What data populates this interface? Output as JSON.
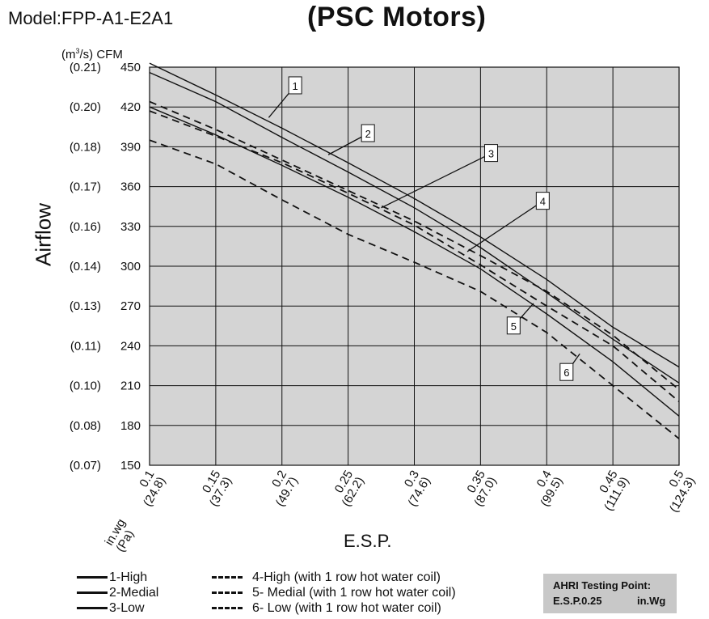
{
  "header": {
    "model": "Model:FPP-A1-E2A1",
    "title": "(PSC Motors)"
  },
  "chart_data": {
    "type": "line",
    "y_unit_label_prefix": "(m",
    "y_unit_label_sup": "3",
    "y_unit_label_suffix": "/s) CFM",
    "ylabel": "Airflow",
    "xlabel": "E.S.P.",
    "x_unit_label_line1": "in.wg",
    "x_unit_label_line2": "(Pa)",
    "xlim": [
      0.1,
      0.5
    ],
    "ylim": [
      150,
      450
    ],
    "grid": true,
    "plot_bg": "#d4d4d4",
    "x_ticks": [
      {
        "value": 0.1,
        "in": "0.1",
        "pa": "(24.8)"
      },
      {
        "value": 0.15,
        "in": "0.15",
        "pa": "(37.3)"
      },
      {
        "value": 0.2,
        "in": "0.2",
        "pa": "(49.7)"
      },
      {
        "value": 0.25,
        "in": "0.25",
        "pa": "(62.2)"
      },
      {
        "value": 0.3,
        "in": "0.3",
        "pa": "(74.6)"
      },
      {
        "value": 0.35,
        "in": "0.35",
        "pa": "(87.0)"
      },
      {
        "value": 0.4,
        "in": "0.4",
        "pa": "(99.5)"
      },
      {
        "value": 0.45,
        "in": "0.45",
        "pa": "(111.9)"
      },
      {
        "value": 0.5,
        "in": "0.5",
        "pa": "(124.3)"
      }
    ],
    "y_ticks": [
      {
        "value": 450,
        "cfm": "450",
        "m3s": "(0.21)"
      },
      {
        "value": 420,
        "cfm": "420",
        "m3s": "(0.20)"
      },
      {
        "value": 390,
        "cfm": "390",
        "m3s": "(0.18)"
      },
      {
        "value": 360,
        "cfm": "360",
        "m3s": "(0.17)"
      },
      {
        "value": 330,
        "cfm": "330",
        "m3s": "(0.16)"
      },
      {
        "value": 300,
        "cfm": "300",
        "m3s": "(0.14)"
      },
      {
        "value": 270,
        "cfm": "270",
        "m3s": "(0.13)"
      },
      {
        "value": 240,
        "cfm": "240",
        "m3s": "(0.11)"
      },
      {
        "value": 210,
        "cfm": "210",
        "m3s": "(0.10)"
      },
      {
        "value": 180,
        "cfm": "180",
        "m3s": "(0.08)"
      },
      {
        "value": 150,
        "cfm": "150",
        "m3s": "(0.07)"
      }
    ],
    "x": [
      0.1,
      0.15,
      0.2,
      0.25,
      0.3,
      0.35,
      0.4,
      0.45,
      0.5
    ],
    "series": [
      {
        "name": "1-High",
        "label": "1",
        "style": "solid",
        "values": [
          453,
          429,
          404,
          378,
          351,
          322,
          290,
          254,
          224
        ],
        "callout": {
          "x": 0.21,
          "y": 436,
          "anchor_x": 0.19,
          "anchor_y": 412
        }
      },
      {
        "name": "2-Medial",
        "label": "2",
        "style": "solid",
        "values": [
          446,
          424,
          397,
          371,
          344,
          314,
          280,
          245,
          212
        ],
        "callout": {
          "x": 0.265,
          "y": 400,
          "anchor_x": 0.235,
          "anchor_y": 384
        }
      },
      {
        "name": "3-Low",
        "label": "3",
        "style": "solid",
        "values": [
          420,
          399,
          376,
          352,
          326,
          298,
          264,
          228,
          187
        ],
        "callout": {
          "x": 0.358,
          "y": 385,
          "anchor_x": 0.275,
          "anchor_y": 344
        }
      },
      {
        "name": "4-High (with 1 row hot water coil)",
        "label": "4",
        "style": "dashed",
        "values": [
          424,
          403,
          380,
          357,
          334,
          308,
          281,
          248,
          207
        ],
        "callout": {
          "x": 0.397,
          "y": 349,
          "anchor_x": 0.34,
          "anchor_y": 311
        }
      },
      {
        "name": "5- Medial (with 1 row hot water coil)",
        "label": "5",
        "style": "dashed",
        "values": [
          417,
          398,
          378,
          355,
          331,
          301,
          270,
          240,
          198
        ],
        "callout": {
          "x": 0.375,
          "y": 255,
          "anchor_x": 0.39,
          "anchor_y": 272
        }
      },
      {
        "name": "6- Low (with 1 row hot water coil)",
        "label": "6",
        "style": "dashed",
        "values": [
          395,
          377,
          350,
          324,
          303,
          281,
          250,
          210,
          170
        ],
        "callout": {
          "x": 0.415,
          "y": 220,
          "anchor_x": 0.425,
          "anchor_y": 234
        }
      }
    ]
  },
  "legend": {
    "solid": [
      "1-High",
      "2-Medial",
      "3-Low"
    ],
    "dashed": [
      "4-High (with 1 row hot water coil)",
      "5- Medial (with 1 row hot water coil)",
      "6- Low (with 1 row hot water coil)"
    ]
  },
  "ahri": {
    "line1": "AHRI Testing Point:",
    "line2a": "E.S.P.0.25",
    "line2b": "in.Wg"
  }
}
